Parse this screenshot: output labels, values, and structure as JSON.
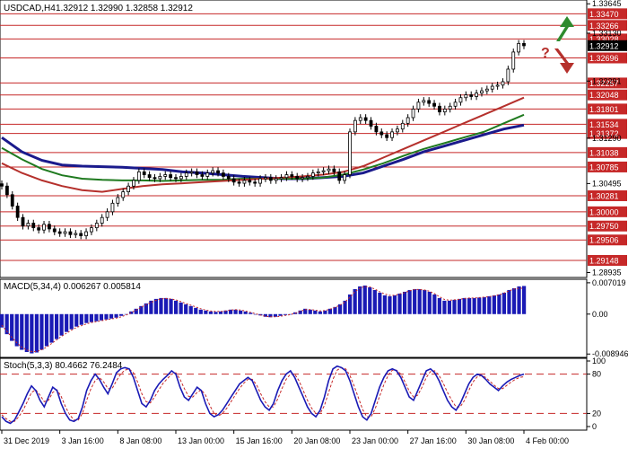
{
  "chart_data": [
    {
      "type": "candlestick",
      "panel": "price",
      "symbol": "USDCAD",
      "timeframe": "H4",
      "header": {
        "symbol_tf": "USDCAD,H4",
        "ohlc": "1.32912 1.32990 1.32858 1.32912"
      },
      "ylim": [
        1.2888,
        1.3368
      ],
      "y_ticks": [
        "1.33645",
        "1.33130",
        "1.32291",
        "1.31290",
        "1.30495",
        "1.28935"
      ],
      "levels": [
        {
          "value": 1.3347,
          "label": "1.33470"
        },
        {
          "value": 1.33266,
          "label": "1.33266"
        },
        {
          "value": 1.33028,
          "label": "1.33028"
        },
        {
          "value": 1.32696,
          "label": "1.32696"
        },
        {
          "value": 1.32257,
          "label": "1.32257"
        },
        {
          "value": 1.32048,
          "label": "1.32048"
        },
        {
          "value": 1.31801,
          "label": "1.31801"
        },
        {
          "value": 1.31534,
          "label": "1.31534"
        },
        {
          "value": 1.31372,
          "label": "1.31372"
        },
        {
          "value": 1.31038,
          "label": "1.31038"
        },
        {
          "value": 1.30785,
          "label": "1.30785"
        },
        {
          "value": 1.30281,
          "label": "1.30281"
        },
        {
          "value": 1.3,
          "label": "1.30000"
        },
        {
          "value": 1.2975,
          "label": "1.29750"
        },
        {
          "value": 1.29506,
          "label": "1.29506"
        },
        {
          "value": 1.29148,
          "label": "1.29148"
        }
      ],
      "current_price": {
        "value": 1.32912,
        "label": "1.32912"
      },
      "price_path": [
        1.3045,
        1.303,
        1.301,
        1.299,
        1.2975,
        1.298,
        1.2972,
        1.2968,
        1.2978,
        1.297,
        1.2965,
        1.2962,
        1.2965,
        1.296,
        1.2962,
        1.2958,
        1.2965,
        1.2972,
        1.298,
        1.299,
        1.3,
        1.3015,
        1.3025,
        1.3035,
        1.3045,
        1.3055,
        1.307,
        1.3065,
        1.306,
        1.3058,
        1.3062,
        1.3065,
        1.306,
        1.3058,
        1.3062,
        1.3068,
        1.307,
        1.3065,
        1.3062,
        1.3068,
        1.3072,
        1.3068,
        1.3062,
        1.3058,
        1.3052,
        1.305,
        1.3055,
        1.3052,
        1.305,
        1.3058,
        1.306,
        1.3055,
        1.3058,
        1.306,
        1.3065,
        1.3062,
        1.3058,
        1.306,
        1.3062,
        1.3068,
        1.307,
        1.3072,
        1.3075,
        1.307,
        1.3055,
        1.3065,
        1.314,
        1.316,
        1.3165,
        1.316,
        1.315,
        1.314,
        1.3135,
        1.313,
        1.314,
        1.3145,
        1.3155,
        1.3165,
        1.318,
        1.3192,
        1.3195,
        1.319,
        1.3185,
        1.3175,
        1.318,
        1.3185,
        1.3192,
        1.32,
        1.3205,
        1.3202,
        1.3208,
        1.3212,
        1.3215,
        1.322,
        1.3222,
        1.3228,
        1.325,
        1.328,
        1.3295,
        1.3291
      ],
      "indicators": [
        {
          "name": "MA-1",
          "color": "#1a1a8c",
          "values": [
            1.313,
            1.3105,
            1.309,
            1.3082,
            1.308,
            1.3079,
            1.3078,
            1.3076,
            1.3074,
            1.307,
            1.3068,
            1.3065,
            1.3062,
            1.306,
            1.3058,
            1.3058,
            1.306,
            1.3062,
            1.3068,
            1.308,
            1.3092,
            1.3105,
            1.3115,
            1.3125,
            1.3135,
            1.3145,
            1.3152
          ]
        },
        {
          "name": "MA-2",
          "color": "#1f7a1f",
          "values": [
            1.3112,
            1.3092,
            1.3075,
            1.3064,
            1.3058,
            1.3056,
            1.3055,
            1.3055,
            1.3054,
            1.3055,
            1.3056,
            1.3056,
            1.3058,
            1.3058,
            1.3058,
            1.3058,
            1.306,
            1.3065,
            1.3074,
            1.3085,
            1.3098,
            1.311,
            1.312,
            1.313,
            1.314,
            1.3155,
            1.317
          ]
        },
        {
          "name": "MA-3",
          "color": "#b5302c",
          "values": [
            1.3085,
            1.3068,
            1.3055,
            1.3045,
            1.3038,
            1.3035,
            1.304,
            1.3045,
            1.3048,
            1.305,
            1.3052,
            1.3054,
            1.3056,
            1.3058,
            1.306,
            1.3062,
            1.3065,
            1.307,
            1.308,
            1.3095,
            1.311,
            1.3125,
            1.314,
            1.3155,
            1.317,
            1.3185,
            1.32
          ]
        }
      ],
      "annotations": {
        "arrow_up_color": "#2e8b2e",
        "arrow_down_color": "#b5302c",
        "question_mark": "?"
      },
      "colors": {
        "level_line": "#c62828",
        "level_label_bg": "#c62828",
        "current_label_bg": "#000000",
        "candle": "#000000",
        "background": "#ffffff"
      }
    },
    {
      "type": "histogram",
      "panel": "macd",
      "header": "MACD(5,34,4) 0.006267 0.005814",
      "ylim": [
        -0.0093,
        0.0074
      ],
      "y_ticks": [
        {
          "value": 0.007019,
          "label": "0.007019"
        },
        {
          "value": 0.0,
          "label": "0.00"
        },
        {
          "value": -0.008946,
          "label": "-0.008946"
        }
      ],
      "values": [
        -0.003,
        -0.0045,
        -0.006,
        -0.0072,
        -0.008,
        -0.0085,
        -0.0088,
        -0.0086,
        -0.008,
        -0.0072,
        -0.0064,
        -0.0056,
        -0.0048,
        -0.004,
        -0.0034,
        -0.0028,
        -0.0024,
        -0.002,
        -0.0018,
        -0.0016,
        -0.0014,
        -0.0012,
        -0.001,
        -0.0008,
        -0.0004,
        0.0,
        0.0006,
        0.0012,
        0.0018,
        0.0024,
        0.003,
        0.0034,
        0.0036,
        0.0036,
        0.0034,
        0.003,
        0.0026,
        0.0022,
        0.0018,
        0.0014,
        0.001,
        0.0008,
        0.0006,
        0.0005,
        0.0006,
        0.0008,
        0.001,
        0.001,
        0.0008,
        0.0006,
        0.0003,
        0.0,
        -0.0003,
        -0.0006,
        -0.0007,
        -0.0006,
        -0.0004,
        -0.0002,
        0.0,
        0.0004,
        0.0008,
        0.0012,
        0.001,
        0.0008,
        0.0006,
        0.0008,
        0.0012,
        0.0016,
        0.0022,
        0.003,
        0.0044,
        0.0056,
        0.0062,
        0.0064,
        0.006,
        0.0054,
        0.0048,
        0.0042,
        0.004,
        0.0042,
        0.0046,
        0.005,
        0.0054,
        0.0056,
        0.0056,
        0.0054,
        0.005,
        0.0044,
        0.0036,
        0.003,
        0.003,
        0.0032,
        0.0034,
        0.0036,
        0.0036,
        0.0036,
        0.0037,
        0.0038,
        0.004,
        0.0042,
        0.0044,
        0.0048,
        0.0054,
        0.0058,
        0.0062,
        0.0063
      ],
      "signal": [
        -0.0025,
        -0.0038,
        -0.0052,
        -0.0064,
        -0.0074,
        -0.008,
        -0.0084,
        -0.0084,
        -0.008,
        -0.0074,
        -0.0066,
        -0.0058,
        -0.005,
        -0.0043,
        -0.0036,
        -0.003,
        -0.0026,
        -0.0022,
        -0.0019,
        -0.0017,
        -0.0015,
        -0.0013,
        -0.0011,
        -0.0009,
        -0.0006,
        -0.0002,
        0.0003,
        0.0009,
        0.0015,
        0.0021,
        0.0026,
        0.0031,
        0.0034,
        0.0035,
        0.0034,
        0.0032,
        0.0028,
        0.0024,
        0.002,
        0.0016,
        0.0012,
        0.0009,
        0.0007,
        0.0006,
        0.0006,
        0.0007,
        0.0009,
        0.001,
        0.0009,
        0.0007,
        0.0004,
        0.0001,
        -0.0002,
        -0.0005,
        -0.0006,
        -0.0006,
        -0.0005,
        -0.0003,
        -0.0001,
        0.0002,
        0.0006,
        0.001,
        0.001,
        0.0009,
        0.0007,
        0.0008,
        0.0011,
        0.0015,
        0.002,
        0.0027,
        0.0038,
        0.005,
        0.0058,
        0.0062,
        0.0061,
        0.0056,
        0.005,
        0.0045,
        0.0042,
        0.0042,
        0.0045,
        0.0048,
        0.0052,
        0.0055,
        0.0055,
        0.0054,
        0.0051,
        0.0046,
        0.0039,
        0.0033,
        0.0031,
        0.0032,
        0.0033,
        0.0035,
        0.0036,
        0.0036,
        0.0037,
        0.0038,
        0.0039,
        0.0041,
        0.0043,
        0.0047,
        0.0052,
        0.0056,
        0.0058,
        0.0058
      ],
      "colors": {
        "bars": "#1a1ab5",
        "signal": "#c62828"
      }
    },
    {
      "type": "line",
      "panel": "stochastic",
      "header": "Stoch(5,3,3) 80.4662 76.2484",
      "ylim": [
        0,
        100
      ],
      "y_ticks": [
        {
          "value": 100,
          "label": "100"
        },
        {
          "value": 80,
          "label": "80"
        },
        {
          "value": 20,
          "label": "20"
        },
        {
          "value": 0,
          "label": "0"
        }
      ],
      "levels": [
        80,
        20
      ],
      "main": [
        15,
        8,
        5,
        10,
        22,
        35,
        50,
        62,
        55,
        40,
        30,
        45,
        60,
        55,
        35,
        20,
        10,
        8,
        12,
        30,
        55,
        70,
        80,
        72,
        60,
        50,
        65,
        82,
        88,
        90,
        88,
        75,
        55,
        35,
        30,
        40,
        55,
        65,
        72,
        78,
        85,
        80,
        60,
        45,
        40,
        50,
        60,
        55,
        35,
        20,
        15,
        18,
        25,
        35,
        45,
        55,
        65,
        70,
        75,
        70,
        55,
        40,
        30,
        25,
        35,
        55,
        70,
        80,
        85,
        75,
        60,
        45,
        30,
        20,
        15,
        25,
        45,
        70,
        88,
        92,
        90,
        85,
        70,
        50,
        30,
        15,
        10,
        20,
        40,
        60,
        75,
        85,
        88,
        85,
        75,
        60,
        45,
        40,
        55,
        70,
        85,
        88,
        82,
        70,
        55,
        40,
        30,
        25,
        35,
        50,
        65,
        75,
        80,
        78,
        72,
        65,
        60,
        55,
        62,
        68,
        72,
        75,
        78,
        80
      ],
      "signal": [
        18,
        12,
        8,
        8,
        15,
        25,
        38,
        52,
        56,
        48,
        38,
        40,
        52,
        56,
        46,
        30,
        18,
        10,
        10,
        20,
        40,
        58,
        70,
        75,
        68,
        58,
        58,
        70,
        80,
        86,
        88,
        82,
        68,
        50,
        38,
        36,
        45,
        56,
        66,
        73,
        80,
        82,
        72,
        58,
        46,
        45,
        52,
        56,
        48,
        32,
        20,
        16,
        20,
        28,
        38,
        48,
        58,
        66,
        72,
        72,
        64,
        50,
        38,
        30,
        30,
        42,
        58,
        72,
        80,
        80,
        70,
        55,
        40,
        28,
        20,
        20,
        32,
        52,
        72,
        86,
        90,
        88,
        78,
        62,
        44,
        26,
        15,
        15,
        28,
        46,
        64,
        78,
        86,
        86,
        80,
        68,
        54,
        45,
        48,
        60,
        75,
        84,
        85,
        78,
        66,
        52,
        40,
        30,
        30,
        40,
        55,
        68,
        76,
        78,
        75,
        69,
        63,
        58,
        58,
        63,
        68,
        72,
        75,
        76
      ],
      "colors": {
        "main": "#1a1ab5",
        "signal": "#c62828",
        "levels": "#c62828"
      }
    }
  ],
  "x_axis": {
    "labels": [
      "31 Dec 2019",
      "3 Jan 16:00",
      "8 Jan 08:00",
      "13 Jan 00:00",
      "15 Jan 16:00",
      "20 Jan 08:00",
      "23 Jan 00:00",
      "27 Jan 16:00",
      "30 Jan 08:00",
      "4 Feb 00:00"
    ]
  }
}
